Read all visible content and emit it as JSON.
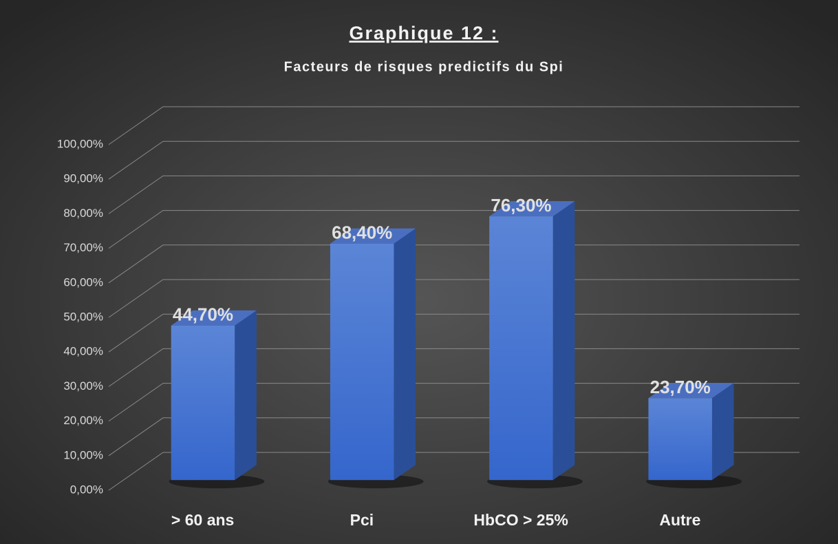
{
  "chart_data": {
    "type": "bar3d",
    "title": "Graphique 12 :",
    "subtitle": "Facteurs de risques predictifs du Spi",
    "categories": [
      "> 60 ans",
      "Pci",
      "HbCO > 25%",
      "Autre"
    ],
    "values": [
      44.7,
      68.4,
      76.3,
      23.7
    ],
    "value_labels": [
      "44,70%",
      "68,40%",
      "76,30%",
      "23,70%"
    ],
    "color": "#3a6fd0",
    "ylim": [
      0,
      100
    ],
    "yticks": [
      {
        "value": 0,
        "label": "0,00%"
      },
      {
        "value": 10,
        "label": "10,00%"
      },
      {
        "value": 20,
        "label": "20,00%"
      },
      {
        "value": 30,
        "label": "30,00%"
      },
      {
        "value": 40,
        "label": "40,00%"
      },
      {
        "value": 50,
        "label": "50,00%"
      },
      {
        "value": 60,
        "label": "60,00%"
      },
      {
        "value": 70,
        "label": "70,00%"
      },
      {
        "value": 80,
        "label": "80,00%"
      },
      {
        "value": 90,
        "label": "90,00%"
      },
      {
        "value": 100,
        "label": "100,00%"
      }
    ],
    "grid": true
  }
}
